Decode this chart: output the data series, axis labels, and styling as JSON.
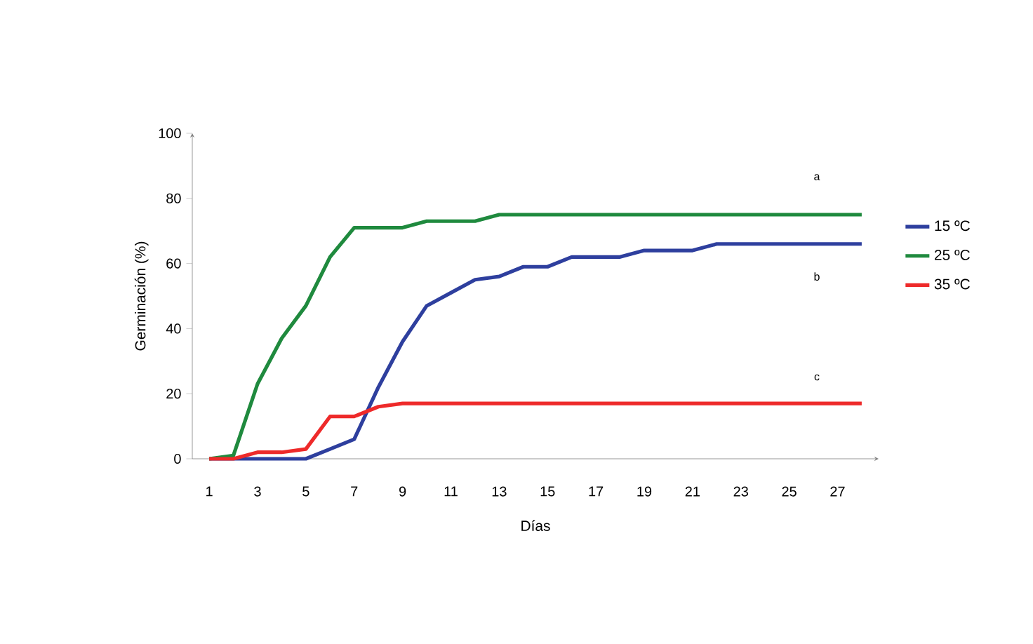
{
  "chart_data": {
    "type": "line",
    "xlabel": "Días",
    "ylabel": "Germinación (%)",
    "x": [
      1,
      2,
      3,
      4,
      5,
      6,
      7,
      8,
      9,
      10,
      11,
      12,
      13,
      14,
      15,
      16,
      17,
      18,
      19,
      20,
      21,
      22,
      23,
      24,
      25,
      26,
      27,
      28
    ],
    "series": [
      {
        "name": "15 ºC",
        "color": "#2e3f9e",
        "values": [
          0,
          0,
          0,
          0,
          0,
          3,
          6,
          22,
          36,
          47,
          51,
          55,
          56,
          59,
          59,
          62,
          62,
          62,
          64,
          64,
          64,
          66,
          66,
          66,
          66,
          66,
          66,
          66
        ]
      },
      {
        "name": "25 ºC",
        "color": "#1f8a3e",
        "values": [
          0,
          1,
          23,
          37,
          47,
          62,
          71,
          71,
          71,
          73,
          73,
          73,
          75,
          75,
          75,
          75,
          75,
          75,
          75,
          75,
          75,
          75,
          75,
          75,
          75,
          75,
          75,
          75
        ]
      },
      {
        "name": "35 ºC",
        "color": "#ee2a2a",
        "values": [
          0,
          0,
          2,
          2,
          3,
          13,
          13,
          16,
          17,
          17,
          17,
          17,
          17,
          17,
          17,
          17,
          17,
          17,
          17,
          17,
          17,
          17,
          17,
          17,
          17,
          17,
          17,
          17
        ]
      }
    ],
    "xlim": [
      0.3,
      28.7
    ],
    "ylim": [
      0,
      100
    ],
    "xticks": [
      1,
      3,
      5,
      7,
      9,
      11,
      13,
      15,
      17,
      19,
      21,
      23,
      25,
      27
    ],
    "yticks": [
      0,
      20,
      40,
      60,
      80,
      100
    ],
    "annotations": [
      "a",
      "b",
      "c"
    ],
    "legend": "right",
    "grid": false,
    "marker": "none",
    "line_style": "solid"
  }
}
